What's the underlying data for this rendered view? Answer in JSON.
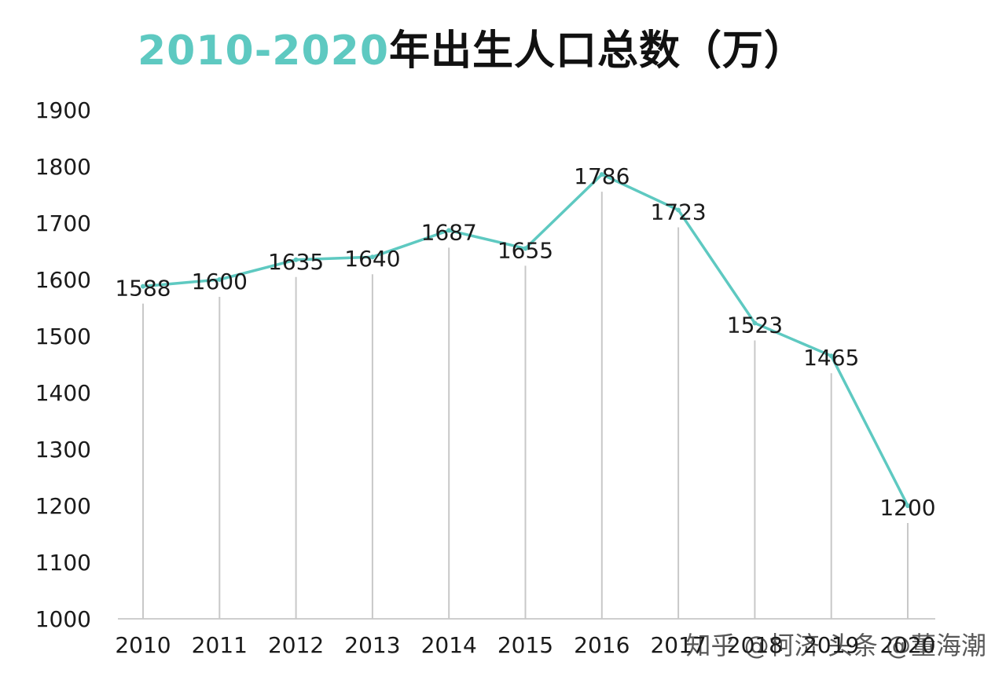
{
  "colors": {
    "accent": "#5ec9c1",
    "line": "#5ec9c1",
    "drop_line": "#c8c8c8",
    "text": "#1a1a1a"
  },
  "chart_data": {
    "type": "line",
    "title_parts": [
      "2010-2020",
      "年出生人口总数（万）"
    ],
    "xlabel": "",
    "ylabel": "",
    "categories": [
      "2010",
      "2011",
      "2012",
      "2013",
      "2014",
      "2015",
      "2016",
      "2017",
      "2018",
      "2019",
      "2020"
    ],
    "values": [
      1588,
      1600,
      1635,
      1640,
      1687,
      1655,
      1786,
      1723,
      1523,
      1465,
      1200
    ],
    "ylim": [
      1000,
      1900
    ],
    "yticks": [
      1000,
      1100,
      1200,
      1300,
      1400,
      1500,
      1600,
      1700,
      1800,
      1900
    ],
    "grid": false,
    "drop_lines": true
  },
  "watermark": "知乎 @柯济 头条 @董海潮"
}
